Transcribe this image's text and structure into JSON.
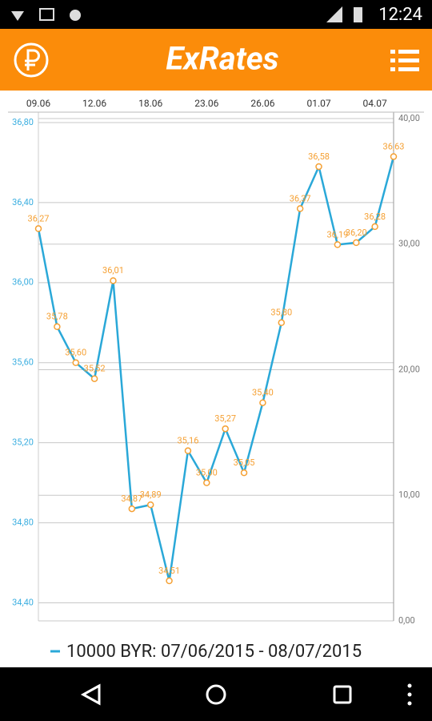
{
  "status_bar": {
    "time": "12:24"
  },
  "app_bar": {
    "title": "ExRates"
  },
  "chart_data": {
    "type": "line",
    "categories": [
      "09.06",
      null,
      null,
      "12.06",
      null,
      null,
      "18.06",
      null,
      null,
      "23.06",
      null,
      null,
      "26.06",
      null,
      null,
      "01.07",
      null,
      null,
      "04.07",
      null
    ],
    "series": [
      {
        "name": "10000 BYR: 07/06/2015 - 08/07/2015",
        "color": "#2aa8d8",
        "marker_color": "#f5a033",
        "values": [
          36.27,
          35.78,
          35.6,
          35.52,
          36.01,
          34.87,
          34.89,
          34.51,
          35.16,
          35.0,
          35.27,
          35.05,
          35.4,
          35.8,
          36.37,
          36.58,
          36.19,
          36.2,
          36.28,
          36.63
        ],
        "value_labels": [
          "36,27",
          "35,78",
          "35,60",
          "35,52",
          "36,01",
          "34,87",
          "34,89",
          "34,51",
          "35,16",
          "35,00",
          "35,27",
          "35,05",
          "35,40",
          "35,80",
          "36,37",
          "36,58",
          "36,19",
          "36,20",
          "36,28",
          "36,63"
        ]
      }
    ],
    "ylim": [
      34.31,
      36.82
    ],
    "yticks": [
      {
        "value": 34.4,
        "label": "34,40"
      },
      {
        "value": 34.8,
        "label": "34,80"
      },
      {
        "value": 35.2,
        "label": "35,20"
      },
      {
        "value": 35.6,
        "label": "35,60"
      },
      {
        "value": 36.0,
        "label": "36,00"
      },
      {
        "value": 36.4,
        "label": "36,40"
      },
      {
        "value": 36.8,
        "label": "36,80"
      }
    ],
    "y2lim": [
      0,
      40
    ],
    "y2ticks": [
      {
        "value": 0,
        "label": "0,00"
      },
      {
        "value": 10,
        "label": "10,00"
      },
      {
        "value": 20,
        "label": "20,00"
      },
      {
        "value": 30,
        "label": "30,00"
      },
      {
        "value": 40,
        "label": "40,00"
      }
    ],
    "grid": true
  }
}
